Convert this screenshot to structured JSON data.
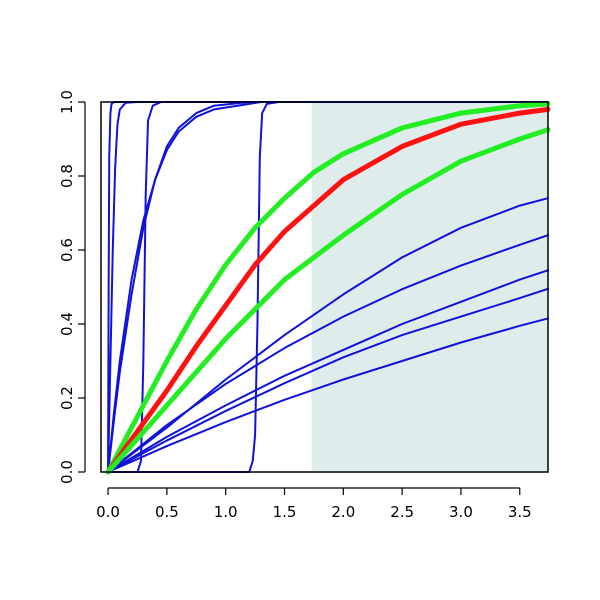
{
  "chart_data": {
    "type": "line",
    "title": "",
    "xlabel": "",
    "ylabel": "",
    "xlim": [
      -0.06,
      3.74
    ],
    "ylim": [
      0,
      1
    ],
    "grid": false,
    "legend": "none",
    "x_ticks": [
      {
        "value": 0.0,
        "label": "0.0"
      },
      {
        "value": 0.5,
        "label": "0.5"
      },
      {
        "value": 1.0,
        "label": "1.0"
      },
      {
        "value": 1.5,
        "label": "1.5"
      },
      {
        "value": 2.0,
        "label": "2.0"
      },
      {
        "value": 2.5,
        "label": "2.5"
      },
      {
        "value": 3.0,
        "label": "3.0"
      },
      {
        "value": 3.5,
        "label": "3.5"
      }
    ],
    "y_ticks": [
      {
        "value": 0.0,
        "label": "0.0"
      },
      {
        "value": 0.2,
        "label": "0.2"
      },
      {
        "value": 0.4,
        "label": "0.4"
      },
      {
        "value": 0.6,
        "label": "0.6"
      },
      {
        "value": 0.8,
        "label": "0.8"
      },
      {
        "value": 1.0,
        "label": "1.0"
      }
    ],
    "shaded_region": {
      "x_from": 1.73,
      "x_to": 3.74,
      "y_from": 0,
      "y_to": 1,
      "color": "#deecec"
    },
    "series": [
      {
        "color": "#1111dd",
        "width": "thin",
        "points": [
          [
            0,
            0
          ],
          [
            0.005,
            0.5
          ],
          [
            0.01,
            0.85
          ],
          [
            0.02,
            0.97
          ],
          [
            0.03,
            0.995
          ],
          [
            0.05,
            1
          ],
          [
            3.74,
            1
          ]
        ]
      },
      {
        "color": "#1111dd",
        "width": "thin",
        "points": [
          [
            0,
            0
          ],
          [
            0.02,
            0.3
          ],
          [
            0.04,
            0.6
          ],
          [
            0.06,
            0.82
          ],
          [
            0.08,
            0.94
          ],
          [
            0.1,
            0.98
          ],
          [
            0.15,
            0.998
          ],
          [
            0.25,
            1
          ],
          [
            3.74,
            1
          ]
        ]
      },
      {
        "color": "#1111dd",
        "width": "thin",
        "points": [
          [
            0,
            0
          ],
          [
            0.25,
            0
          ],
          [
            0.28,
            0.03
          ],
          [
            0.3,
            0.3
          ],
          [
            0.32,
            0.75
          ],
          [
            0.34,
            0.95
          ],
          [
            0.38,
            0.99
          ],
          [
            0.45,
            1
          ],
          [
            3.74,
            1
          ]
        ]
      },
      {
        "color": "#1111dd",
        "width": "thin",
        "points": [
          [
            0,
            0
          ],
          [
            0.05,
            0.16
          ],
          [
            0.1,
            0.3
          ],
          [
            0.2,
            0.52
          ],
          [
            0.3,
            0.68
          ],
          [
            0.4,
            0.79
          ],
          [
            0.5,
            0.87
          ],
          [
            0.6,
            0.92
          ],
          [
            0.75,
            0.96
          ],
          [
            0.9,
            0.98
          ],
          [
            1.1,
            0.99
          ],
          [
            1.3,
            1
          ],
          [
            3.74,
            1
          ]
        ]
      },
      {
        "color": "#1111dd",
        "width": "thin",
        "points": [
          [
            0,
            0
          ],
          [
            0.05,
            0.14
          ],
          [
            0.1,
            0.27
          ],
          [
            0.2,
            0.48
          ],
          [
            0.3,
            0.66
          ],
          [
            0.4,
            0.79
          ],
          [
            0.5,
            0.88
          ],
          [
            0.6,
            0.93
          ],
          [
            0.75,
            0.97
          ],
          [
            0.9,
            0.99
          ],
          [
            1.2,
            1
          ],
          [
            3.74,
            1
          ]
        ]
      },
      {
        "color": "#1111dd",
        "width": "thin",
        "points": [
          [
            0,
            0
          ],
          [
            1.2,
            0
          ],
          [
            1.23,
            0.03
          ],
          [
            1.25,
            0.1
          ],
          [
            1.27,
            0.4
          ],
          [
            1.29,
            0.85
          ],
          [
            1.31,
            0.97
          ],
          [
            1.35,
            0.995
          ],
          [
            1.45,
            1
          ],
          [
            3.74,
            1
          ]
        ]
      },
      {
        "color": "#1111dd",
        "width": "thin",
        "points": [
          [
            0,
            0
          ],
          [
            0.5,
            0.127
          ],
          [
            1,
            0.238
          ],
          [
            1.5,
            0.335
          ],
          [
            2,
            0.42
          ],
          [
            2.5,
            0.494
          ],
          [
            3,
            0.558
          ],
          [
            3.5,
            0.614
          ],
          [
            3.74,
            0.64
          ]
        ]
      },
      {
        "color": "#1111dd",
        "width": "thin",
        "points": [
          [
            0,
            0
          ],
          [
            0.5,
            0.095
          ],
          [
            1,
            0.18
          ],
          [
            1.5,
            0.26
          ],
          [
            2,
            0.33
          ],
          [
            2.5,
            0.4
          ],
          [
            3,
            0.46
          ],
          [
            3.5,
            0.52
          ],
          [
            3.74,
            0.545
          ]
        ]
      },
      {
        "color": "#1111dd",
        "width": "thin",
        "points": [
          [
            0,
            0
          ],
          [
            0.5,
            0.085
          ],
          [
            1,
            0.165
          ],
          [
            1.5,
            0.24
          ],
          [
            2,
            0.31
          ],
          [
            2.5,
            0.37
          ],
          [
            3,
            0.42
          ],
          [
            3.5,
            0.47
          ],
          [
            3.74,
            0.495
          ]
        ]
      },
      {
        "color": "#1111dd",
        "width": "thin",
        "points": [
          [
            0,
            0
          ],
          [
            0.5,
            0.07
          ],
          [
            1,
            0.135
          ],
          [
            1.5,
            0.195
          ],
          [
            2,
            0.25
          ],
          [
            2.5,
            0.3
          ],
          [
            3,
            0.35
          ],
          [
            3.5,
            0.395
          ],
          [
            3.74,
            0.415
          ]
        ]
      },
      {
        "color": "#1111dd",
        "width": "thin",
        "points": [
          [
            0,
            0
          ],
          [
            0.5,
            0.12
          ],
          [
            1,
            0.25
          ],
          [
            1.5,
            0.37
          ],
          [
            2,
            0.48
          ],
          [
            2.5,
            0.58
          ],
          [
            3,
            0.66
          ],
          [
            3.5,
            0.72
          ],
          [
            3.74,
            0.74
          ]
        ]
      },
      {
        "color": "#22ee22",
        "width": "thick",
        "points": [
          [
            0,
            0
          ],
          [
            0.25,
            0.15
          ],
          [
            0.5,
            0.3
          ],
          [
            0.75,
            0.44
          ],
          [
            1,
            0.56
          ],
          [
            1.25,
            0.66
          ],
          [
            1.5,
            0.74
          ],
          [
            1.75,
            0.81
          ],
          [
            2,
            0.86
          ],
          [
            2.5,
            0.93
          ],
          [
            3,
            0.97
          ],
          [
            3.5,
            0.99
          ],
          [
            3.74,
            0.995
          ]
        ]
      },
      {
        "color": "#ff1111",
        "width": "thick",
        "points": [
          [
            0,
            0
          ],
          [
            0.25,
            0.11
          ],
          [
            0.5,
            0.22
          ],
          [
            0.75,
            0.34
          ],
          [
            1,
            0.45
          ],
          [
            1.25,
            0.56
          ],
          [
            1.5,
            0.65
          ],
          [
            1.75,
            0.72
          ],
          [
            2,
            0.79
          ],
          [
            2.5,
            0.88
          ],
          [
            3,
            0.94
          ],
          [
            3.5,
            0.97
          ],
          [
            3.74,
            0.98
          ]
        ]
      },
      {
        "color": "#22ee22",
        "width": "thick",
        "points": [
          [
            0,
            0
          ],
          [
            0.25,
            0.09
          ],
          [
            0.5,
            0.18
          ],
          [
            0.75,
            0.27
          ],
          [
            1,
            0.36
          ],
          [
            1.25,
            0.44
          ],
          [
            1.5,
            0.52
          ],
          [
            1.75,
            0.58
          ],
          [
            2,
            0.64
          ],
          [
            2.5,
            0.75
          ],
          [
            3,
            0.84
          ],
          [
            3.5,
            0.9
          ],
          [
            3.74,
            0.925
          ]
        ]
      }
    ]
  }
}
